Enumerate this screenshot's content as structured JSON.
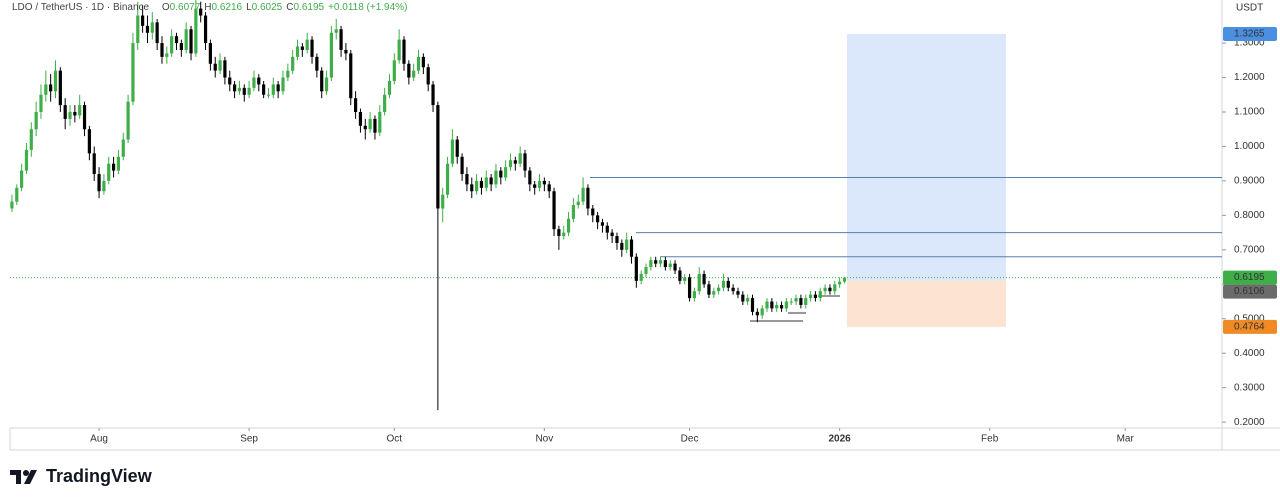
{
  "chart_data": {
    "type": "candlestick",
    "title": "LDO / TetherUS · 1D · Binance",
    "ohlc_labels": [
      "O",
      "H",
      "L",
      "C"
    ],
    "change": "+0.0118 (+1.94%)",
    "currency": "USDT",
    "up_color": "#3fae49",
    "down_color": "#000000",
    "categories": [
      null,
      null,
      null,
      null,
      null,
      null,
      null,
      null,
      null,
      null,
      null,
      null,
      null,
      null,
      null,
      null,
      null,
      null,
      null,
      null,
      null,
      null,
      null,
      null,
      null,
      null,
      null,
      null,
      null,
      null,
      null,
      null,
      null,
      null,
      null,
      null,
      null,
      null,
      null,
      null,
      null,
      null,
      null,
      null,
      null,
      null,
      null,
      null,
      null,
      null,
      null,
      null,
      null,
      null,
      null,
      null,
      null,
      null,
      null,
      null,
      null,
      null,
      null,
      null,
      null,
      null,
      null,
      null,
      null,
      null,
      null,
      null,
      null,
      null,
      null,
      null,
      null,
      null,
      null,
      null,
      null,
      null,
      null,
      null,
      null,
      null,
      null,
      null,
      null,
      null,
      null,
      null,
      null,
      null,
      null,
      null,
      null,
      null,
      null,
      null,
      null,
      null,
      null,
      null,
      null,
      null,
      null,
      null,
      null,
      null,
      null,
      null,
      null,
      null,
      null,
      null,
      null,
      null,
      null,
      null,
      null,
      null,
      null,
      null,
      null,
      null,
      null,
      null,
      null,
      null,
      null,
      null,
      null,
      null,
      null,
      null,
      null,
      null,
      null,
      null,
      null,
      null,
      null,
      null,
      null,
      null,
      null,
      null,
      null,
      null,
      null,
      null,
      null,
      null,
      null,
      null,
      null,
      null,
      null,
      null,
      null,
      null,
      null,
      null,
      null,
      null,
      null,
      null,
      null,
      null,
      null,
      null,
      null
    ],
    "values": [
      [
        0.82,
        0.86,
        0.81,
        0.84
      ],
      [
        0.84,
        0.89,
        0.83,
        0.88
      ],
      [
        0.88,
        0.95,
        0.87,
        0.93
      ],
      [
        0.93,
        1.01,
        0.92,
        0.99
      ],
      [
        0.99,
        1.07,
        0.97,
        1.05
      ],
      [
        1.05,
        1.13,
        1.03,
        1.1
      ],
      [
        1.1,
        1.18,
        1.08,
        1.15
      ],
      [
        1.15,
        1.22,
        1.13,
        1.18
      ],
      [
        1.18,
        1.21,
        1.13,
        1.16
      ],
      [
        1.16,
        1.25,
        1.14,
        1.22
      ],
      [
        1.22,
        1.23,
        1.1,
        1.12
      ],
      [
        1.12,
        1.14,
        1.05,
        1.08
      ],
      [
        1.08,
        1.12,
        1.06,
        1.1
      ],
      [
        1.1,
        1.12,
        1.07,
        1.09
      ],
      [
        1.09,
        1.15,
        1.08,
        1.12
      ],
      [
        1.12,
        1.13,
        1.03,
        1.05
      ],
      [
        1.05,
        1.06,
        0.96,
        0.98
      ],
      [
        0.98,
        1.0,
        0.9,
        0.92
      ],
      [
        0.92,
        0.94,
        0.85,
        0.87
      ],
      [
        0.87,
        0.92,
        0.86,
        0.9
      ],
      [
        0.9,
        0.97,
        0.89,
        0.95
      ],
      [
        0.95,
        0.97,
        0.91,
        0.93
      ],
      [
        0.93,
        0.99,
        0.92,
        0.97
      ],
      [
        0.97,
        1.04,
        0.96,
        1.02
      ],
      [
        1.02,
        1.15,
        1.01,
        1.13
      ],
      [
        1.13,
        1.33,
        1.12,
        1.3
      ],
      [
        1.3,
        1.42,
        1.28,
        1.38
      ],
      [
        1.38,
        1.41,
        1.33,
        1.35
      ],
      [
        1.35,
        1.38,
        1.3,
        1.33
      ],
      [
        1.33,
        1.39,
        1.31,
        1.36
      ],
      [
        1.36,
        1.37,
        1.28,
        1.3
      ],
      [
        1.3,
        1.32,
        1.24,
        1.26
      ],
      [
        1.26,
        1.29,
        1.24,
        1.27
      ],
      [
        1.27,
        1.34,
        1.26,
        1.32
      ],
      [
        1.32,
        1.33,
        1.28,
        1.3
      ],
      [
        1.3,
        1.31,
        1.26,
        1.28
      ],
      [
        1.28,
        1.36,
        1.27,
        1.34
      ],
      [
        1.34,
        1.35,
        1.25,
        1.27
      ],
      [
        1.27,
        1.43,
        1.26,
        1.4
      ],
      [
        1.4,
        1.42,
        1.36,
        1.38
      ],
      [
        1.38,
        1.39,
        1.28,
        1.3
      ],
      [
        1.3,
        1.31,
        1.22,
        1.24
      ],
      [
        1.24,
        1.26,
        1.2,
        1.22
      ],
      [
        1.22,
        1.27,
        1.21,
        1.25
      ],
      [
        1.25,
        1.26,
        1.18,
        1.2
      ],
      [
        1.2,
        1.22,
        1.16,
        1.18
      ],
      [
        1.18,
        1.19,
        1.14,
        1.16
      ],
      [
        1.16,
        1.19,
        1.15,
        1.17
      ],
      [
        1.17,
        1.18,
        1.13,
        1.15
      ],
      [
        1.15,
        1.19,
        1.14,
        1.17
      ],
      [
        1.17,
        1.22,
        1.16,
        1.2
      ],
      [
        1.2,
        1.21,
        1.16,
        1.18
      ],
      [
        1.18,
        1.19,
        1.14,
        1.15
      ],
      [
        1.15,
        1.17,
        1.14,
        1.15
      ],
      [
        1.15,
        1.2,
        1.14,
        1.18
      ],
      [
        1.18,
        1.19,
        1.14,
        1.16
      ],
      [
        1.16,
        1.22,
        1.15,
        1.2
      ],
      [
        1.2,
        1.24,
        1.19,
        1.22
      ],
      [
        1.22,
        1.28,
        1.21,
        1.26
      ],
      [
        1.26,
        1.31,
        1.25,
        1.29
      ],
      [
        1.29,
        1.3,
        1.26,
        1.28
      ],
      [
        1.28,
        1.33,
        1.27,
        1.31
      ],
      [
        1.31,
        1.32,
        1.24,
        1.26
      ],
      [
        1.26,
        1.27,
        1.2,
        1.22
      ],
      [
        1.22,
        1.23,
        1.14,
        1.16
      ],
      [
        1.16,
        1.22,
        1.15,
        1.2
      ],
      [
        1.2,
        1.35,
        1.19,
        1.33
      ],
      [
        1.33,
        1.37,
        1.31,
        1.34
      ],
      [
        1.34,
        1.35,
        1.26,
        1.28
      ],
      [
        1.28,
        1.3,
        1.25,
        1.27
      ],
      [
        1.27,
        1.28,
        1.12,
        1.14
      ],
      [
        1.14,
        1.16,
        1.08,
        1.1
      ],
      [
        1.1,
        1.11,
        1.04,
        1.06
      ],
      [
        1.06,
        1.08,
        1.02,
        1.05
      ],
      [
        1.05,
        1.1,
        1.04,
        1.08
      ],
      [
        1.08,
        1.09,
        1.02,
        1.04
      ],
      [
        1.04,
        1.12,
        1.03,
        1.1
      ],
      [
        1.1,
        1.17,
        1.09,
        1.15
      ],
      [
        1.15,
        1.21,
        1.14,
        1.19
      ],
      [
        1.19,
        1.27,
        1.18,
        1.25
      ],
      [
        1.25,
        1.34,
        1.24,
        1.31
      ],
      [
        1.31,
        1.32,
        1.22,
        1.24
      ],
      [
        1.24,
        1.25,
        1.18,
        1.2
      ],
      [
        1.2,
        1.24,
        1.19,
        1.22
      ],
      [
        1.22,
        1.28,
        1.21,
        1.26
      ],
      [
        1.26,
        1.27,
        1.21,
        1.23
      ],
      [
        1.23,
        1.24,
        1.16,
        1.18
      ],
      [
        1.18,
        1.19,
        1.1,
        1.12
      ],
      [
        1.12,
        1.13,
        0.235,
        0.82
      ],
      [
        0.82,
        0.88,
        0.78,
        0.86
      ],
      [
        0.86,
        0.97,
        0.85,
        0.95
      ],
      [
        0.95,
        1.05,
        0.94,
        1.02
      ],
      [
        1.02,
        1.03,
        0.95,
        0.97
      ],
      [
        0.97,
        0.98,
        0.9,
        0.92
      ],
      [
        0.92,
        0.94,
        0.87,
        0.89
      ],
      [
        0.89,
        0.91,
        0.85,
        0.87
      ],
      [
        0.87,
        0.92,
        0.86,
        0.9
      ],
      [
        0.9,
        0.91,
        0.86,
        0.88
      ],
      [
        0.88,
        0.93,
        0.87,
        0.91
      ],
      [
        0.91,
        0.92,
        0.87,
        0.89
      ],
      [
        0.89,
        0.95,
        0.88,
        0.93
      ],
      [
        0.93,
        0.94,
        0.89,
        0.91
      ],
      [
        0.91,
        0.96,
        0.9,
        0.94
      ],
      [
        0.94,
        0.98,
        0.93,
        0.96
      ],
      [
        0.96,
        0.97,
        0.93,
        0.95
      ],
      [
        0.95,
        1.0,
        0.94,
        0.98
      ],
      [
        0.98,
        0.99,
        0.91,
        0.93
      ],
      [
        0.93,
        0.94,
        0.87,
        0.89
      ],
      [
        0.89,
        0.9,
        0.86,
        0.88
      ],
      [
        0.88,
        0.92,
        0.87,
        0.9
      ],
      [
        0.9,
        0.91,
        0.87,
        0.89
      ],
      [
        0.89,
        0.9,
        0.85,
        0.87
      ],
      [
        0.87,
        0.88,
        0.74,
        0.76
      ],
      [
        0.76,
        0.77,
        0.7,
        0.74
      ],
      [
        0.74,
        0.77,
        0.73,
        0.75
      ],
      [
        0.75,
        0.81,
        0.74,
        0.79
      ],
      [
        0.79,
        0.85,
        0.78,
        0.83
      ],
      [
        0.83,
        0.86,
        0.82,
        0.84
      ],
      [
        0.84,
        0.91,
        0.83,
        0.88
      ],
      [
        0.88,
        0.89,
        0.8,
        0.82
      ],
      [
        0.82,
        0.83,
        0.78,
        0.8
      ],
      [
        0.8,
        0.81,
        0.76,
        0.78
      ],
      [
        0.78,
        0.79,
        0.75,
        0.77
      ],
      [
        0.77,
        0.78,
        0.73,
        0.75
      ],
      [
        0.75,
        0.76,
        0.72,
        0.74
      ],
      [
        0.74,
        0.75,
        0.7,
        0.72
      ],
      [
        0.72,
        0.73,
        0.68,
        0.7
      ],
      [
        0.7,
        0.75,
        0.69,
        0.73
      ],
      [
        0.73,
        0.74,
        0.66,
        0.68
      ],
      [
        0.68,
        0.69,
        0.59,
        0.61
      ],
      [
        0.61,
        0.64,
        0.6,
        0.63
      ],
      [
        0.63,
        0.66,
        0.62,
        0.65
      ],
      [
        0.65,
        0.68,
        0.64,
        0.67
      ],
      [
        0.67,
        0.68,
        0.65,
        0.66
      ],
      [
        0.66,
        0.68,
        0.65,
        0.67
      ],
      [
        0.67,
        0.68,
        0.64,
        0.65
      ],
      [
        0.65,
        0.67,
        0.64,
        0.66
      ],
      [
        0.66,
        0.67,
        0.63,
        0.64
      ],
      [
        0.64,
        0.65,
        0.6,
        0.61
      ],
      [
        0.61,
        0.63,
        0.6,
        0.62
      ],
      [
        0.62,
        0.63,
        0.55,
        0.56
      ],
      [
        0.56,
        0.59,
        0.55,
        0.58
      ],
      [
        0.58,
        0.65,
        0.57,
        0.63
      ],
      [
        0.63,
        0.64,
        0.59,
        0.6
      ],
      [
        0.6,
        0.61,
        0.56,
        0.57
      ],
      [
        0.57,
        0.59,
        0.56,
        0.58
      ],
      [
        0.58,
        0.6,
        0.57,
        0.59
      ],
      [
        0.59,
        0.63,
        0.58,
        0.61
      ],
      [
        0.61,
        0.62,
        0.58,
        0.59
      ],
      [
        0.59,
        0.6,
        0.57,
        0.58
      ],
      [
        0.58,
        0.59,
        0.56,
        0.57
      ],
      [
        0.57,
        0.58,
        0.54,
        0.55
      ],
      [
        0.55,
        0.57,
        0.54,
        0.56
      ],
      [
        0.56,
        0.57,
        0.51,
        0.52
      ],
      [
        0.52,
        0.53,
        0.49,
        0.51
      ],
      [
        0.51,
        0.54,
        0.5,
        0.53
      ],
      [
        0.53,
        0.56,
        0.52,
        0.55
      ],
      [
        0.55,
        0.56,
        0.52,
        0.53
      ],
      [
        0.53,
        0.55,
        0.52,
        0.54
      ],
      [
        0.54,
        0.55,
        0.52,
        0.53
      ],
      [
        0.53,
        0.56,
        0.52,
        0.55
      ],
      [
        0.55,
        0.56,
        0.54,
        0.55
      ],
      [
        0.55,
        0.57,
        0.54,
        0.56
      ],
      [
        0.56,
        0.57,
        0.53,
        0.54
      ],
      [
        0.54,
        0.57,
        0.53,
        0.56
      ],
      [
        0.56,
        0.58,
        0.55,
        0.57
      ],
      [
        0.57,
        0.58,
        0.55,
        0.56
      ],
      [
        0.56,
        0.59,
        0.55,
        0.58
      ],
      [
        0.58,
        0.6,
        0.57,
        0.59
      ],
      [
        0.59,
        0.6,
        0.57,
        0.58
      ],
      [
        0.58,
        0.61,
        0.57,
        0.6
      ],
      [
        0.6,
        0.62,
        0.59,
        0.6077
      ],
      [
        0.6077,
        0.6216,
        0.6025,
        0.6195
      ]
    ],
    "xlim": [
      -0.4,
      250
    ],
    "xticks": [
      {
        "value": 18,
        "label": "Aug"
      },
      {
        "value": 49,
        "label": "Sep"
      },
      {
        "value": 79,
        "label": "Oct"
      },
      {
        "value": 110,
        "label": "Nov"
      },
      {
        "value": 140,
        "label": "Dec"
      },
      {
        "value": 171,
        "label": "2026"
      },
      {
        "value": 202,
        "label": "Feb"
      },
      {
        "value": 230,
        "label": "Mar"
      }
    ],
    "ylim": [
      0.183,
      1.425
    ],
    "yticks": [
      {
        "value": 0.2,
        "label": "0.2000"
      },
      {
        "value": 0.3,
        "label": "0.3000"
      },
      {
        "value": 0.4,
        "label": "0.4000"
      },
      {
        "value": 0.5,
        "label": "0.5000"
      },
      {
        "value": 0.6,
        "label": "0.6000"
      },
      {
        "value": 0.7,
        "label": "0.7000"
      },
      {
        "value": 0.8,
        "label": "0.8000"
      },
      {
        "value": 0.9,
        "label": "0.9000"
      },
      {
        "value": 1.0,
        "label": "1.0000"
      },
      {
        "value": 1.1,
        "label": "1.1000"
      },
      {
        "value": 1.2,
        "label": "1.2000"
      },
      {
        "value": 1.3,
        "label": "1.3000"
      }
    ],
    "levels": [
      0.91,
      0.75,
      0.68
    ],
    "position": {
      "target": 1.3265,
      "entry": 0.6106,
      "stop": 0.4764
    }
  },
  "footer": {
    "brand": "TradingView"
  }
}
